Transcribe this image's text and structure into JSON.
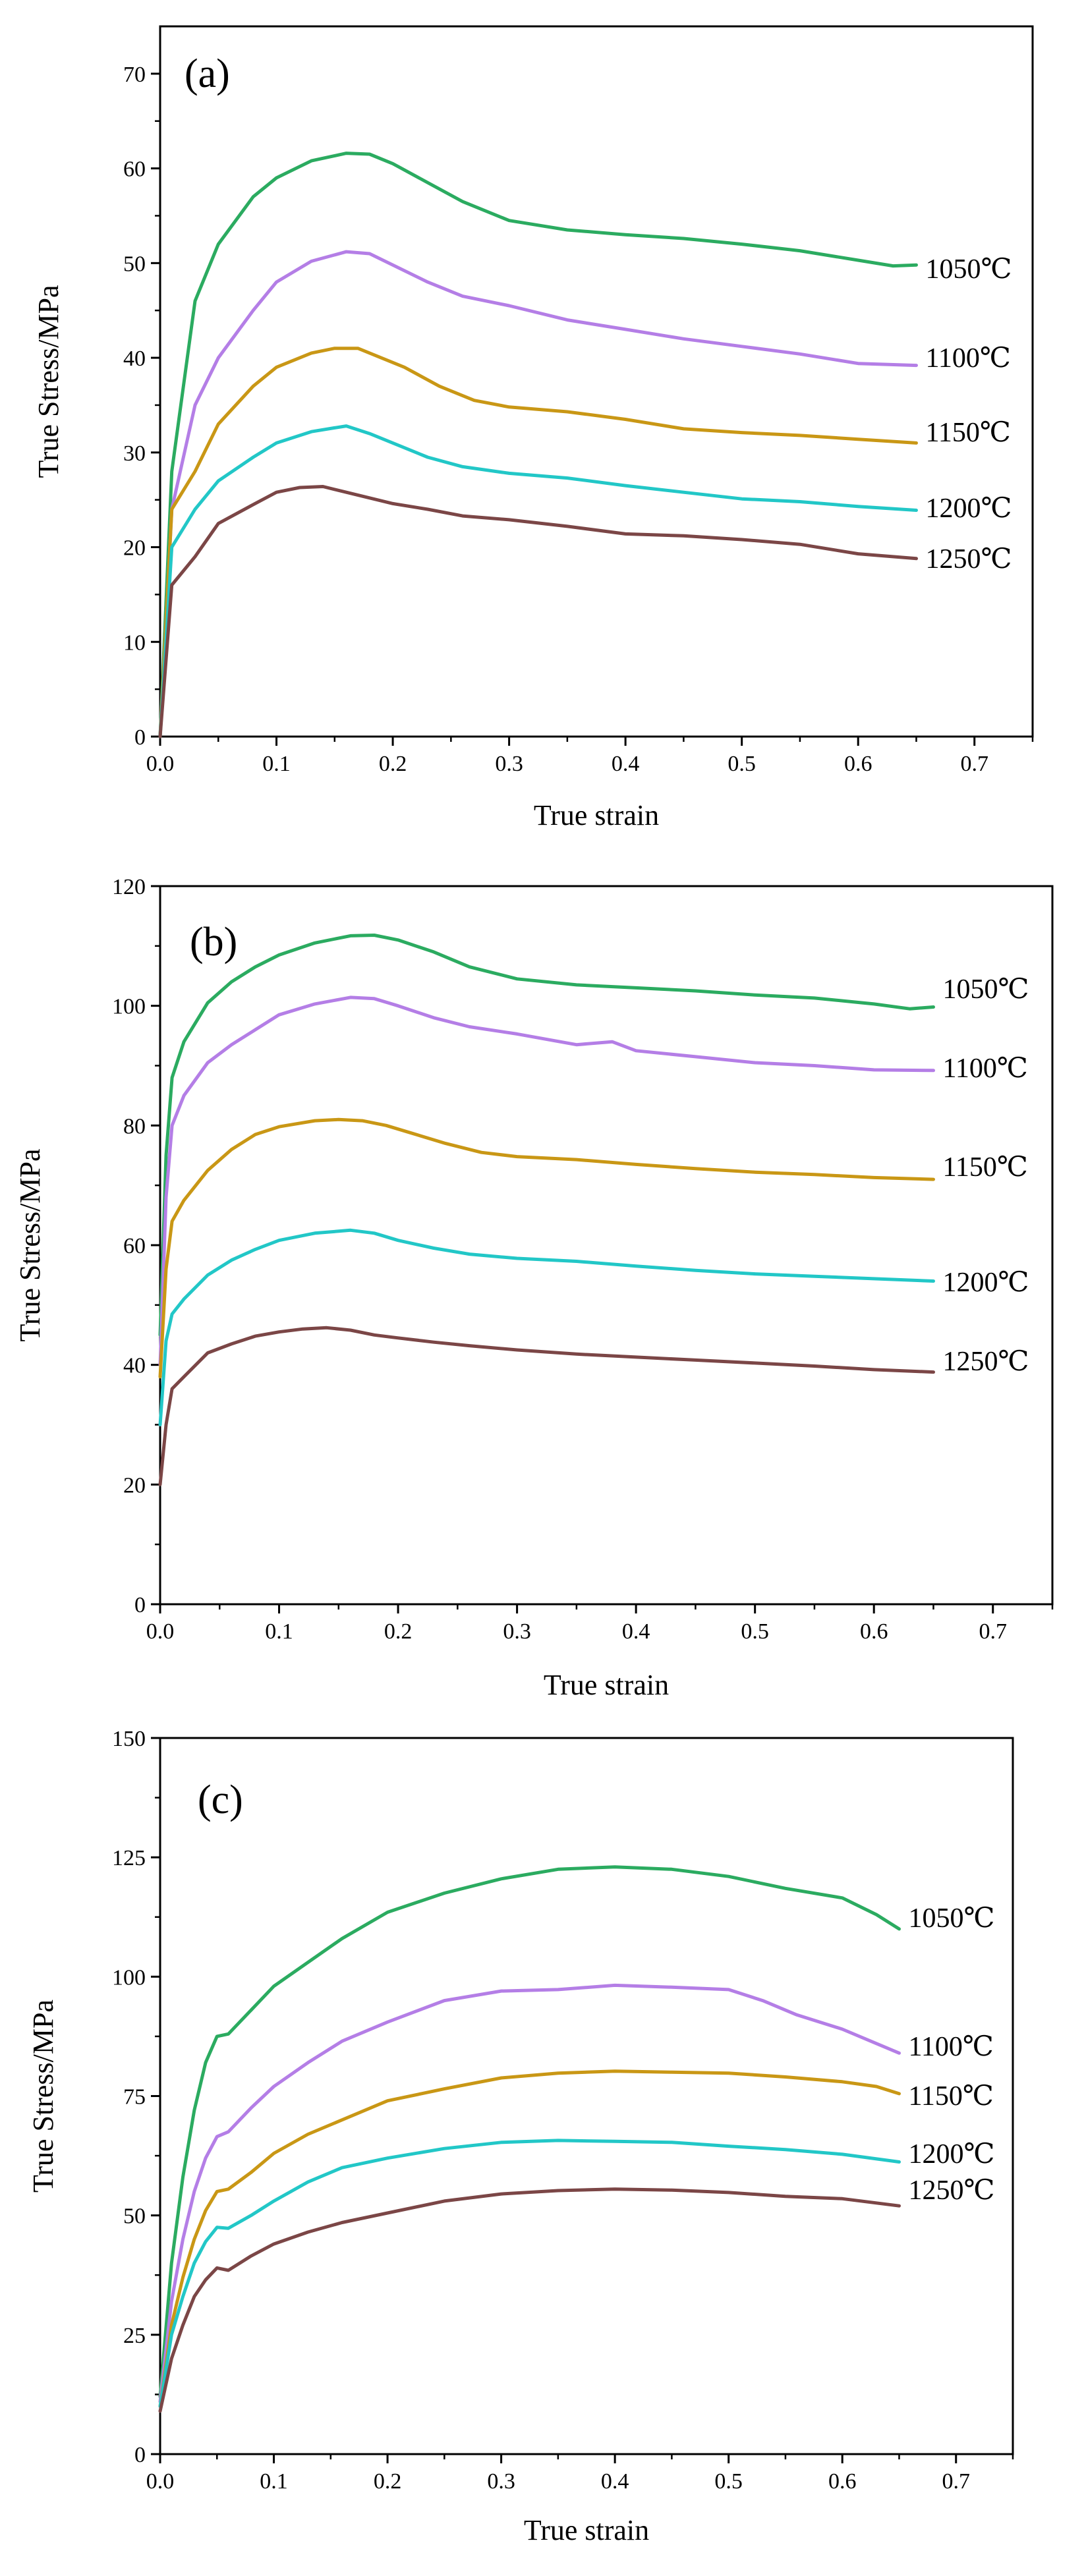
{
  "chart_data": [
    {
      "type": "line",
      "panel_label": "(a)",
      "xlabel": "True strain",
      "ylabel": "True Stress/MPa",
      "xlim": [
        0,
        0.75
      ],
      "ylim": [
        0,
        75
      ],
      "xticks": [
        "0.0",
        "0.1",
        "0.2",
        "0.3",
        "0.4",
        "0.5",
        "0.6",
        "0.7"
      ],
      "yticks": [
        "0",
        "10",
        "20",
        "30",
        "40",
        "50",
        "60",
        "70"
      ],
      "xtick_values": [
        0,
        0.1,
        0.2,
        0.3,
        0.4,
        0.5,
        0.6,
        0.7
      ],
      "ytick_values": [
        0,
        10,
        20,
        30,
        40,
        50,
        60,
        70
      ],
      "series": [
        {
          "name": "1050℃",
          "color": "#2bab60",
          "x": [
            0,
            0.01,
            0.03,
            0.05,
            0.08,
            0.1,
            0.13,
            0.16,
            0.18,
            0.2,
            0.23,
            0.26,
            0.3,
            0.35,
            0.4,
            0.45,
            0.5,
            0.55,
            0.6,
            0.63,
            0.65
          ],
          "y": [
            0,
            28,
            46,
            52,
            57,
            59,
            60.8,
            61.6,
            61.5,
            60.5,
            58.5,
            56.5,
            54.5,
            53.5,
            53,
            52.6,
            52,
            51.3,
            50.3,
            49.7,
            49.8
          ]
        },
        {
          "name": "1100℃",
          "color": "#b47ee6",
          "x": [
            0,
            0.01,
            0.03,
            0.05,
            0.08,
            0.1,
            0.13,
            0.16,
            0.18,
            0.2,
            0.23,
            0.26,
            0.3,
            0.35,
            0.4,
            0.45,
            0.5,
            0.55,
            0.6,
            0.65
          ],
          "y": [
            0,
            24,
            35,
            40,
            45,
            48,
            50.2,
            51.2,
            51,
            49.8,
            48,
            46.5,
            45.5,
            44,
            43,
            42,
            41.2,
            40.4,
            39.4,
            39.2
          ]
        },
        {
          "name": "1150℃",
          "color": "#c99715",
          "x": [
            0,
            0.01,
            0.03,
            0.05,
            0.08,
            0.1,
            0.13,
            0.15,
            0.17,
            0.19,
            0.21,
            0.24,
            0.27,
            0.3,
            0.35,
            0.4,
            0.45,
            0.5,
            0.55,
            0.6,
            0.65
          ],
          "y": [
            0,
            24,
            28,
            33,
            37,
            39,
            40.5,
            41,
            41,
            40,
            39,
            37,
            35.5,
            34.8,
            34.3,
            33.5,
            32.5,
            32.1,
            31.8,
            31.4,
            31
          ]
        },
        {
          "name": "1200℃",
          "color": "#22c7c7",
          "x": [
            0,
            0.01,
            0.03,
            0.05,
            0.08,
            0.1,
            0.13,
            0.15,
            0.16,
            0.18,
            0.2,
            0.23,
            0.26,
            0.3,
            0.35,
            0.4,
            0.45,
            0.5,
            0.55,
            0.6,
            0.65
          ],
          "y": [
            0,
            20,
            24,
            27,
            29.5,
            31,
            32.2,
            32.6,
            32.8,
            32,
            31,
            29.5,
            28.5,
            27.8,
            27.3,
            26.5,
            25.8,
            25.1,
            24.8,
            24.3,
            23.9
          ]
        },
        {
          "name": "1250℃",
          "color": "#7b4646",
          "x": [
            0,
            0.01,
            0.03,
            0.05,
            0.08,
            0.1,
            0.12,
            0.14,
            0.16,
            0.18,
            0.2,
            0.23,
            0.26,
            0.3,
            0.35,
            0.4,
            0.45,
            0.5,
            0.55,
            0.6,
            0.65
          ],
          "y": [
            0,
            16,
            19,
            22.5,
            24.5,
            25.8,
            26.3,
            26.4,
            25.8,
            25.2,
            24.6,
            24,
            23.3,
            22.9,
            22.2,
            21.4,
            21.2,
            20.8,
            20.3,
            19.3,
            18.8
          ]
        }
      ]
    },
    {
      "type": "line",
      "panel_label": "(b)",
      "xlabel": "True strain",
      "ylabel": "True Stress/MPa",
      "xlim": [
        0,
        0.75
      ],
      "ylim": [
        0,
        120
      ],
      "xticks": [
        "0.0",
        "0.1",
        "0.2",
        "0.3",
        "0.4",
        "0.5",
        "0.6",
        "0.7"
      ],
      "yticks": [
        "0",
        "20",
        "40",
        "60",
        "80",
        "100",
        "120"
      ],
      "xtick_values": [
        0,
        0.1,
        0.2,
        0.3,
        0.4,
        0.5,
        0.6,
        0.7
      ],
      "ytick_values": [
        0,
        20,
        40,
        60,
        80,
        100,
        120
      ],
      "series": [
        {
          "name": "1050℃",
          "color": "#2bab60",
          "x": [
            0,
            0.005,
            0.01,
            0.02,
            0.04,
            0.06,
            0.08,
            0.1,
            0.13,
            0.16,
            0.18,
            0.2,
            0.23,
            0.26,
            0.3,
            0.35,
            0.4,
            0.45,
            0.5,
            0.55,
            0.6,
            0.63,
            0.65
          ],
          "y": [
            45,
            75,
            88,
            94,
            100.5,
            104,
            106.5,
            108.5,
            110.5,
            111.7,
            111.8,
            111,
            109,
            106.5,
            104.5,
            103.5,
            103,
            102.5,
            101.8,
            101.3,
            100.3,
            99.5,
            99.8
          ]
        },
        {
          "name": "1100℃",
          "color": "#b47ee6",
          "x": [
            0,
            0.005,
            0.01,
            0.02,
            0.04,
            0.06,
            0.08,
            0.1,
            0.13,
            0.16,
            0.18,
            0.2,
            0.23,
            0.26,
            0.3,
            0.35,
            0.38,
            0.4,
            0.45,
            0.5,
            0.55,
            0.6,
            0.65
          ],
          "y": [
            40,
            68,
            80,
            85,
            90.5,
            93.5,
            96,
            98.5,
            100.3,
            101.4,
            101.2,
            100,
            98,
            96.5,
            95.3,
            93.5,
            94,
            92.5,
            91.5,
            90.5,
            90,
            89.3,
            89.2
          ]
        },
        {
          "name": "1150℃",
          "color": "#c99715",
          "x": [
            0,
            0.005,
            0.01,
            0.02,
            0.04,
            0.06,
            0.08,
            0.1,
            0.13,
            0.15,
            0.17,
            0.19,
            0.21,
            0.24,
            0.27,
            0.3,
            0.35,
            0.4,
            0.45,
            0.5,
            0.55,
            0.6,
            0.65
          ],
          "y": [
            38,
            56,
            64,
            67.5,
            72.5,
            76,
            78.5,
            79.8,
            80.8,
            81,
            80.8,
            80,
            78.8,
            77,
            75.5,
            74.8,
            74.3,
            73.5,
            72.8,
            72.2,
            71.8,
            71.3,
            71
          ]
        },
        {
          "name": "1200℃",
          "color": "#22c7c7",
          "x": [
            0,
            0.005,
            0.01,
            0.02,
            0.04,
            0.06,
            0.08,
            0.1,
            0.13,
            0.16,
            0.18,
            0.2,
            0.23,
            0.26,
            0.3,
            0.35,
            0.4,
            0.45,
            0.5,
            0.55,
            0.6,
            0.65
          ],
          "y": [
            30,
            44,
            48.5,
            51,
            55,
            57.5,
            59.3,
            60.8,
            62,
            62.5,
            62,
            60.8,
            59.5,
            58.5,
            57.8,
            57.3,
            56.5,
            55.8,
            55.2,
            54.8,
            54.4,
            54
          ]
        },
        {
          "name": "1250℃",
          "color": "#7b4646",
          "x": [
            0,
            0.005,
            0.01,
            0.02,
            0.04,
            0.06,
            0.08,
            0.1,
            0.12,
            0.14,
            0.16,
            0.18,
            0.2,
            0.23,
            0.26,
            0.3,
            0.35,
            0.4,
            0.45,
            0.5,
            0.55,
            0.6,
            0.65
          ],
          "y": [
            20,
            30,
            36,
            38,
            42,
            43.5,
            44.8,
            45.5,
            46,
            46.2,
            45.8,
            45,
            44.5,
            43.8,
            43.2,
            42.5,
            41.8,
            41.3,
            40.8,
            40.3,
            39.8,
            39.2,
            38.8
          ]
        }
      ]
    },
    {
      "type": "line",
      "panel_label": "(c)",
      "xlabel": "True strain",
      "ylabel": "True Stress/MPa",
      "xlim": [
        0,
        0.75
      ],
      "ylim": [
        0,
        150
      ],
      "xticks": [
        "0.0",
        "0.1",
        "0.2",
        "0.3",
        "0.4",
        "0.5",
        "0.6",
        "0.7"
      ],
      "yticks": [
        "0",
        "25",
        "50",
        "75",
        "100",
        "125",
        "150"
      ],
      "xtick_values": [
        0,
        0.1,
        0.2,
        0.3,
        0.4,
        0.5,
        0.6,
        0.7
      ],
      "ytick_values": [
        0,
        25,
        50,
        75,
        100,
        125,
        150
      ],
      "series": [
        {
          "name": "1050℃",
          "color": "#2bab60",
          "x": [
            0,
            0.01,
            0.02,
            0.03,
            0.04,
            0.05,
            0.06,
            0.08,
            0.1,
            0.13,
            0.16,
            0.2,
            0.25,
            0.3,
            0.35,
            0.4,
            0.45,
            0.5,
            0.55,
            0.6,
            0.63,
            0.65
          ],
          "y": [
            12,
            40,
            58,
            72,
            82,
            87.5,
            88,
            93,
            98,
            103,
            108,
            113.5,
            117.5,
            120.5,
            122.5,
            123,
            122.5,
            121,
            118.5,
            116.5,
            113,
            110
          ]
        },
        {
          "name": "1100℃",
          "color": "#b47ee6",
          "x": [
            0,
            0.01,
            0.02,
            0.03,
            0.04,
            0.05,
            0.06,
            0.08,
            0.1,
            0.13,
            0.16,
            0.2,
            0.25,
            0.3,
            0.35,
            0.4,
            0.45,
            0.5,
            0.53,
            0.56,
            0.6,
            0.63,
            0.65
          ],
          "y": [
            11,
            32,
            45,
            55,
            62,
            66.5,
            67.5,
            72.5,
            77,
            82,
            86.5,
            90.5,
            95,
            97,
            97.3,
            98.2,
            97.8,
            97.3,
            95,
            92,
            89,
            86,
            84
          ]
        },
        {
          "name": "1150℃",
          "color": "#c99715",
          "x": [
            0,
            0.01,
            0.02,
            0.03,
            0.04,
            0.05,
            0.06,
            0.08,
            0.1,
            0.13,
            0.16,
            0.2,
            0.25,
            0.3,
            0.35,
            0.4,
            0.45,
            0.5,
            0.55,
            0.6,
            0.63,
            0.65
          ],
          "y": [
            10,
            27,
            37,
            45,
            51,
            55,
            55.5,
            59,
            63,
            67,
            70,
            74,
            76.5,
            78.8,
            79.8,
            80.2,
            80,
            79.8,
            79,
            78,
            77,
            75.5
          ]
        },
        {
          "name": "1200℃",
          "color": "#22c7c7",
          "x": [
            0,
            0.01,
            0.02,
            0.03,
            0.04,
            0.05,
            0.06,
            0.08,
            0.1,
            0.13,
            0.16,
            0.2,
            0.25,
            0.3,
            0.35,
            0.4,
            0.45,
            0.5,
            0.55,
            0.6,
            0.65
          ],
          "y": [
            10,
            25,
            33,
            40,
            44.5,
            47.5,
            47.3,
            50,
            53,
            57,
            60,
            62,
            64,
            65.3,
            65.7,
            65.5,
            65.3,
            64.5,
            63.8,
            62.8,
            61.2
          ]
        },
        {
          "name": "1250℃",
          "color": "#7b4646",
          "x": [
            0,
            0.01,
            0.02,
            0.03,
            0.04,
            0.05,
            0.06,
            0.08,
            0.1,
            0.13,
            0.16,
            0.2,
            0.25,
            0.3,
            0.35,
            0.4,
            0.45,
            0.5,
            0.55,
            0.6,
            0.65
          ],
          "y": [
            9,
            20,
            27,
            33,
            36.5,
            39,
            38.5,
            41.5,
            44,
            46.5,
            48.5,
            50.5,
            53,
            54.5,
            55.2,
            55.5,
            55.3,
            54.8,
            54,
            53.5,
            52
          ]
        }
      ]
    }
  ]
}
